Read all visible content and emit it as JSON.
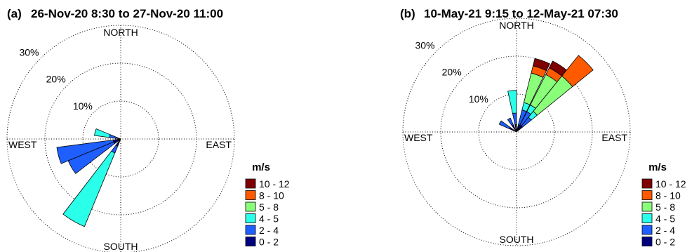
{
  "speed_bins": [
    {
      "label": "0 - 2",
      "color": "#00007f"
    },
    {
      "label": "2 - 4",
      "color": "#1f5fff"
    },
    {
      "label": "4 - 5",
      "color": "#2affea"
    },
    {
      "label": "5 - 8",
      "color": "#8aff7a"
    },
    {
      "label": "8 - 10",
      "color": "#ff5a00"
    },
    {
      "label": "10 - 12",
      "color": "#7f0000"
    }
  ],
  "legend_title": "m/s",
  "directions": {
    "north": "NORTH",
    "south": "SOUTH",
    "east": "EAST",
    "west": "WEST"
  },
  "chart_data": [
    {
      "type": "windrose",
      "panel": "(a)",
      "title": "26-Nov-20 8:30 to 27-Nov-20 11:00",
      "rings": [
        "10%",
        "20%",
        "30%"
      ],
      "ring_values": [
        10,
        20,
        30
      ],
      "max_percent": 30,
      "sector_width_deg": 15,
      "petals": [
        {
          "direction_deg": 285,
          "cumulative": [
            0,
            3,
            7
          ]
        },
        {
          "direction_deg": 255,
          "cumulative": [
            2,
            17,
            17
          ]
        },
        {
          "direction_deg": 240,
          "cumulative": [
            2,
            15,
            15
          ]
        },
        {
          "direction_deg": 210,
          "cumulative": [
            2,
            4,
            25
          ]
        }
      ]
    },
    {
      "type": "windrose",
      "panel": "(b)",
      "title": "10-May-21 9:15 to 12-May-21 07:30",
      "rings": [
        "10%",
        "20%",
        "30%"
      ],
      "ring_values": [
        10,
        20,
        30
      ],
      "max_percent": 30,
      "sector_width_deg": 12,
      "petals": [
        {
          "direction_deg": 300,
          "cumulative": [
            2,
            5
          ]
        },
        {
          "direction_deg": 330,
          "cumulative": [
            2,
            4
          ]
        },
        {
          "direction_deg": 354,
          "cumulative": [
            2,
            5,
            11,
            11,
            11,
            11
          ]
        },
        {
          "direction_deg": 20,
          "cumulative": [
            2,
            6,
            8,
            16,
            18,
            20
          ]
        },
        {
          "direction_deg": 33,
          "cumulative": [
            2,
            6,
            8,
            17,
            19,
            21
          ]
        },
        {
          "direction_deg": 45,
          "cumulative": [
            2,
            5,
            7,
            19,
            26,
            26
          ]
        }
      ]
    }
  ]
}
